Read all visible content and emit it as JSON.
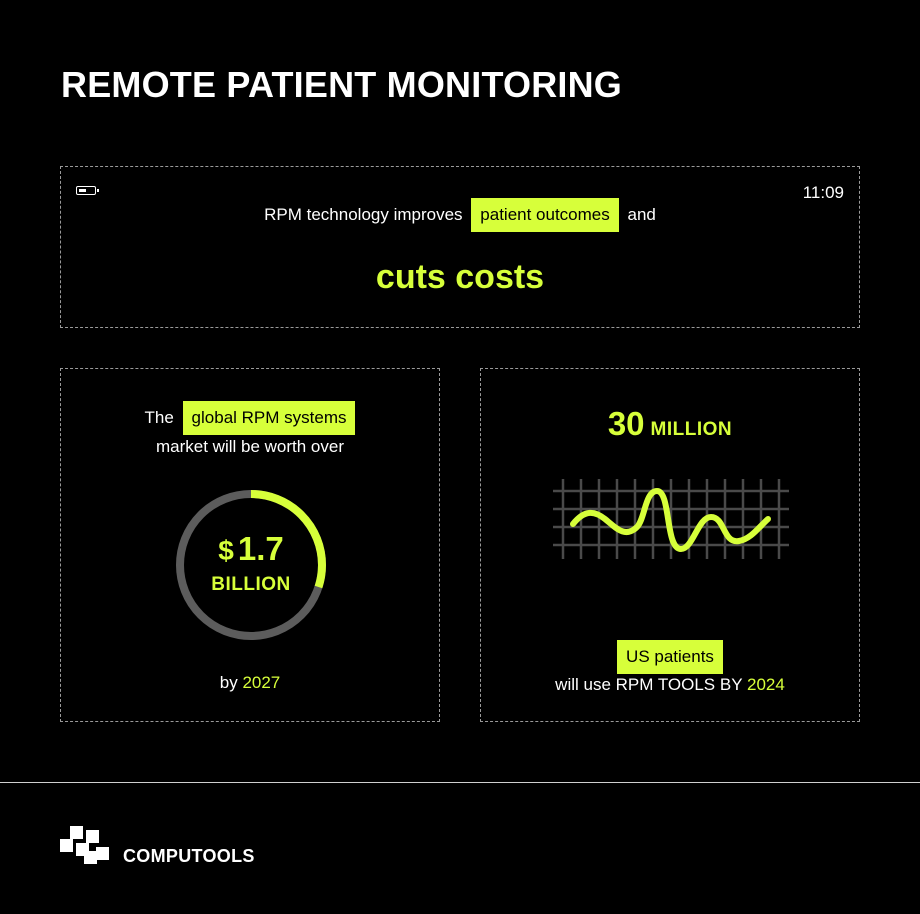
{
  "title": "REMOTE PATIENT MONITORING",
  "colors": {
    "accent": "#d7ff3a",
    "background": "#000000",
    "track": "#5c5c5c"
  },
  "top_card": {
    "time": "11:09",
    "text_before": "RPM technology improves",
    "highlight": "patient outcomes",
    "text_after": "and",
    "big_text": "cuts costs"
  },
  "left_card": {
    "the": "The",
    "highlight": "global RPM systems",
    "line2": "market will be worth over",
    "currency": "$",
    "amount": "1.7",
    "unit": "BILLION",
    "progress": 0.3,
    "bottom_prefix": "by",
    "year": "2027"
  },
  "right_card": {
    "number": "30",
    "unit": "MILLION",
    "highlight": "US patients",
    "bottom_prefix": "will use RPM TOOLS BY",
    "year": "2024"
  },
  "brand": {
    "name": "COMPUTOOLS",
    "icon": "computools-logo-icon"
  }
}
